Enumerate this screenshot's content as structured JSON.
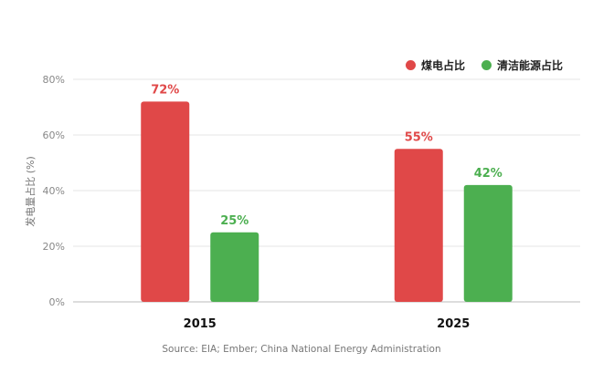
{
  "chart_data": {
    "type": "bar",
    "categories": [
      "2015",
      "2025"
    ],
    "series": [
      {
        "name": "煤电占比",
        "values": [
          72,
          55
        ],
        "labels": [
          "72%",
          "55%"
        ],
        "color": "#e04848"
      },
      {
        "name": "清洁能源占比",
        "values": [
          25,
          42
        ],
        "labels": [
          "25%",
          "42%"
        ],
        "color": "#4caf50"
      }
    ],
    "ylabel": "发电量占比 (%)",
    "ylim": [
      0,
      80
    ],
    "yticks": [
      0,
      20,
      40,
      60,
      80
    ],
    "ytick_labels": [
      "0%",
      "20%",
      "40%",
      "60%",
      "80%"
    ],
    "grid": true,
    "legend_position": "top-right",
    "source": "Source: EIA; Ember; China National Energy Administration"
  }
}
